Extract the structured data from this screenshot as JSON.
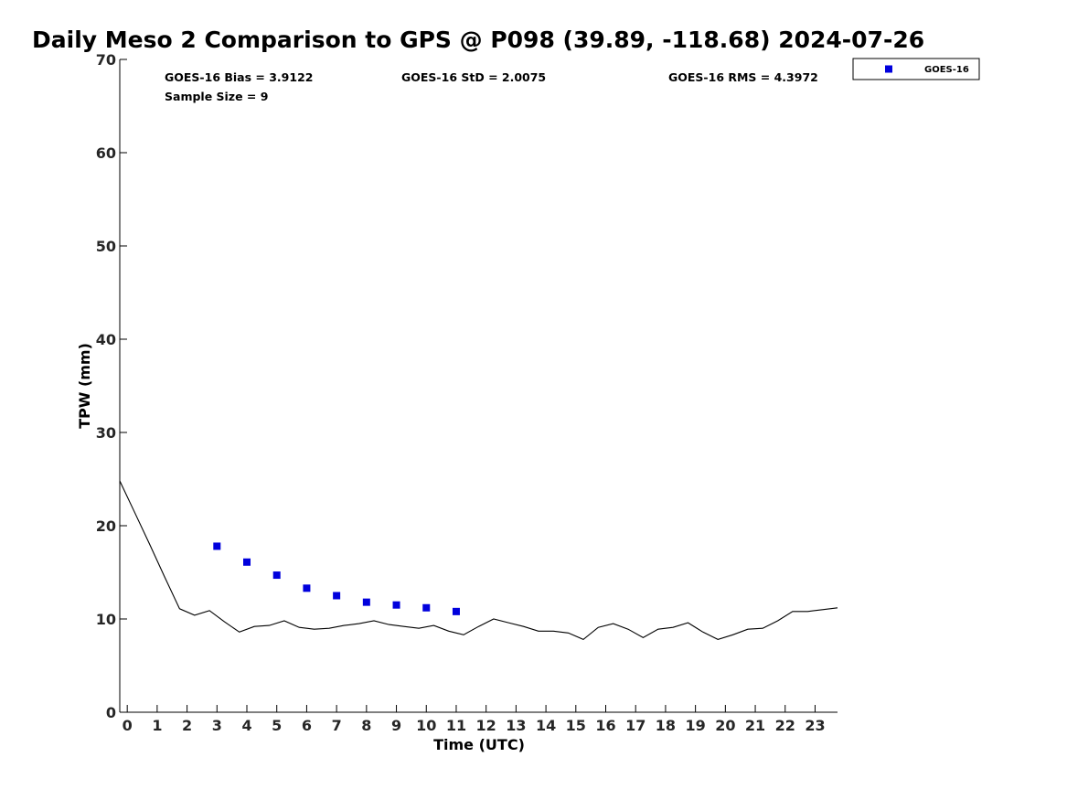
{
  "chart_data": {
    "type": "scatter",
    "title": "Daily Meso 2 Comparison to GPS @ P098 (39.89, -118.68) 2024-07-26",
    "xlabel": "Time (UTC)",
    "ylabel": "TPW (mm)",
    "xlim": [
      -0.25,
      23.75
    ],
    "ylim": [
      0,
      70
    ],
    "x_ticks": [
      "0",
      "1",
      "2",
      "3",
      "4",
      "5",
      "6",
      "7",
      "8",
      "9",
      "10",
      "11",
      "12",
      "13",
      "14",
      "15",
      "16",
      "17",
      "18",
      "19",
      "20",
      "21",
      "22",
      "23"
    ],
    "y_ticks": [
      "0",
      "10",
      "20",
      "30",
      "40",
      "50",
      "60",
      "70"
    ],
    "grid": false,
    "legend_position": "top-right, outside",
    "stats": {
      "bias": "GOES-16 Bias = 3.9122",
      "std": "GOES-16 StD = 2.0075",
      "rms": "GOES-16 RMS = 4.3972",
      "sample": "Sample Size = 9"
    },
    "series": [
      {
        "name": "GOES-16",
        "kind": "scatter",
        "color": "#0000dd",
        "marker": "square",
        "x": [
          3,
          4,
          5,
          6,
          7,
          8,
          9,
          10,
          11
        ],
        "y": [
          17.8,
          16.1,
          14.7,
          13.3,
          12.5,
          11.8,
          11.5,
          11.2,
          10.8
        ]
      },
      {
        "kind": "line",
        "color": "#000000",
        "x": [
          -0.25,
          0.25,
          0.75,
          1.25,
          1.75,
          2.25,
          2.75,
          3.25,
          3.75,
          4.25,
          4.75,
          5.25,
          5.75,
          6.25,
          6.75,
          7.25,
          7.75,
          8.25,
          8.75,
          9.25,
          9.75,
          10.25,
          10.75,
          11.25,
          11.75,
          12.25,
          12.75,
          13.25,
          13.75,
          14.25,
          14.75,
          15.25,
          15.75,
          16.25,
          16.75,
          17.25,
          17.75,
          18.25,
          18.75,
          19.25,
          19.75,
          20.25,
          20.75,
          21.25,
          21.75,
          22.25,
          22.75,
          23.25,
          23.75
        ],
        "y": [
          24.8,
          21.4,
          18.0,
          14.5,
          11.1,
          10.4,
          10.9,
          9.7,
          8.6,
          9.2,
          9.3,
          9.8,
          9.1,
          8.9,
          9.0,
          9.3,
          9.5,
          9.8,
          9.4,
          9.2,
          9.0,
          9.3,
          8.7,
          8.3,
          9.2,
          10.0,
          9.6,
          9.2,
          8.7,
          8.7,
          8.5,
          7.8,
          9.1,
          9.5,
          8.9,
          8.0,
          8.9,
          9.1,
          9.6,
          8.6,
          7.8,
          8.3,
          8.9,
          9.0,
          9.8,
          10.8,
          10.8,
          11.0,
          11.2
        ]
      }
    ]
  }
}
